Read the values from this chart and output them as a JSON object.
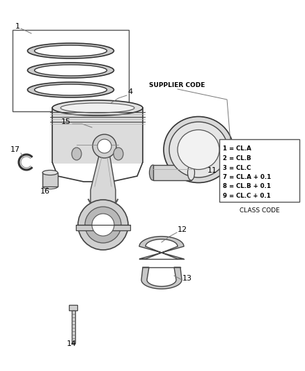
{
  "background_color": "#ffffff",
  "line_color": "#404040",
  "text_color": "#000000",
  "supplier_code_text": "SUPPLIER CODE",
  "class_code_text": "CLASS CODE",
  "class_code_lines": [
    "1 = CL.A",
    "2 = CL.B",
    "3 = CL.C",
    "7 = CL.A + 0.1",
    "8 = CL.B + 0.1",
    "9 = CL.C + 0.1"
  ],
  "fig_w": 4.38,
  "fig_h": 5.33,
  "dpi": 100
}
